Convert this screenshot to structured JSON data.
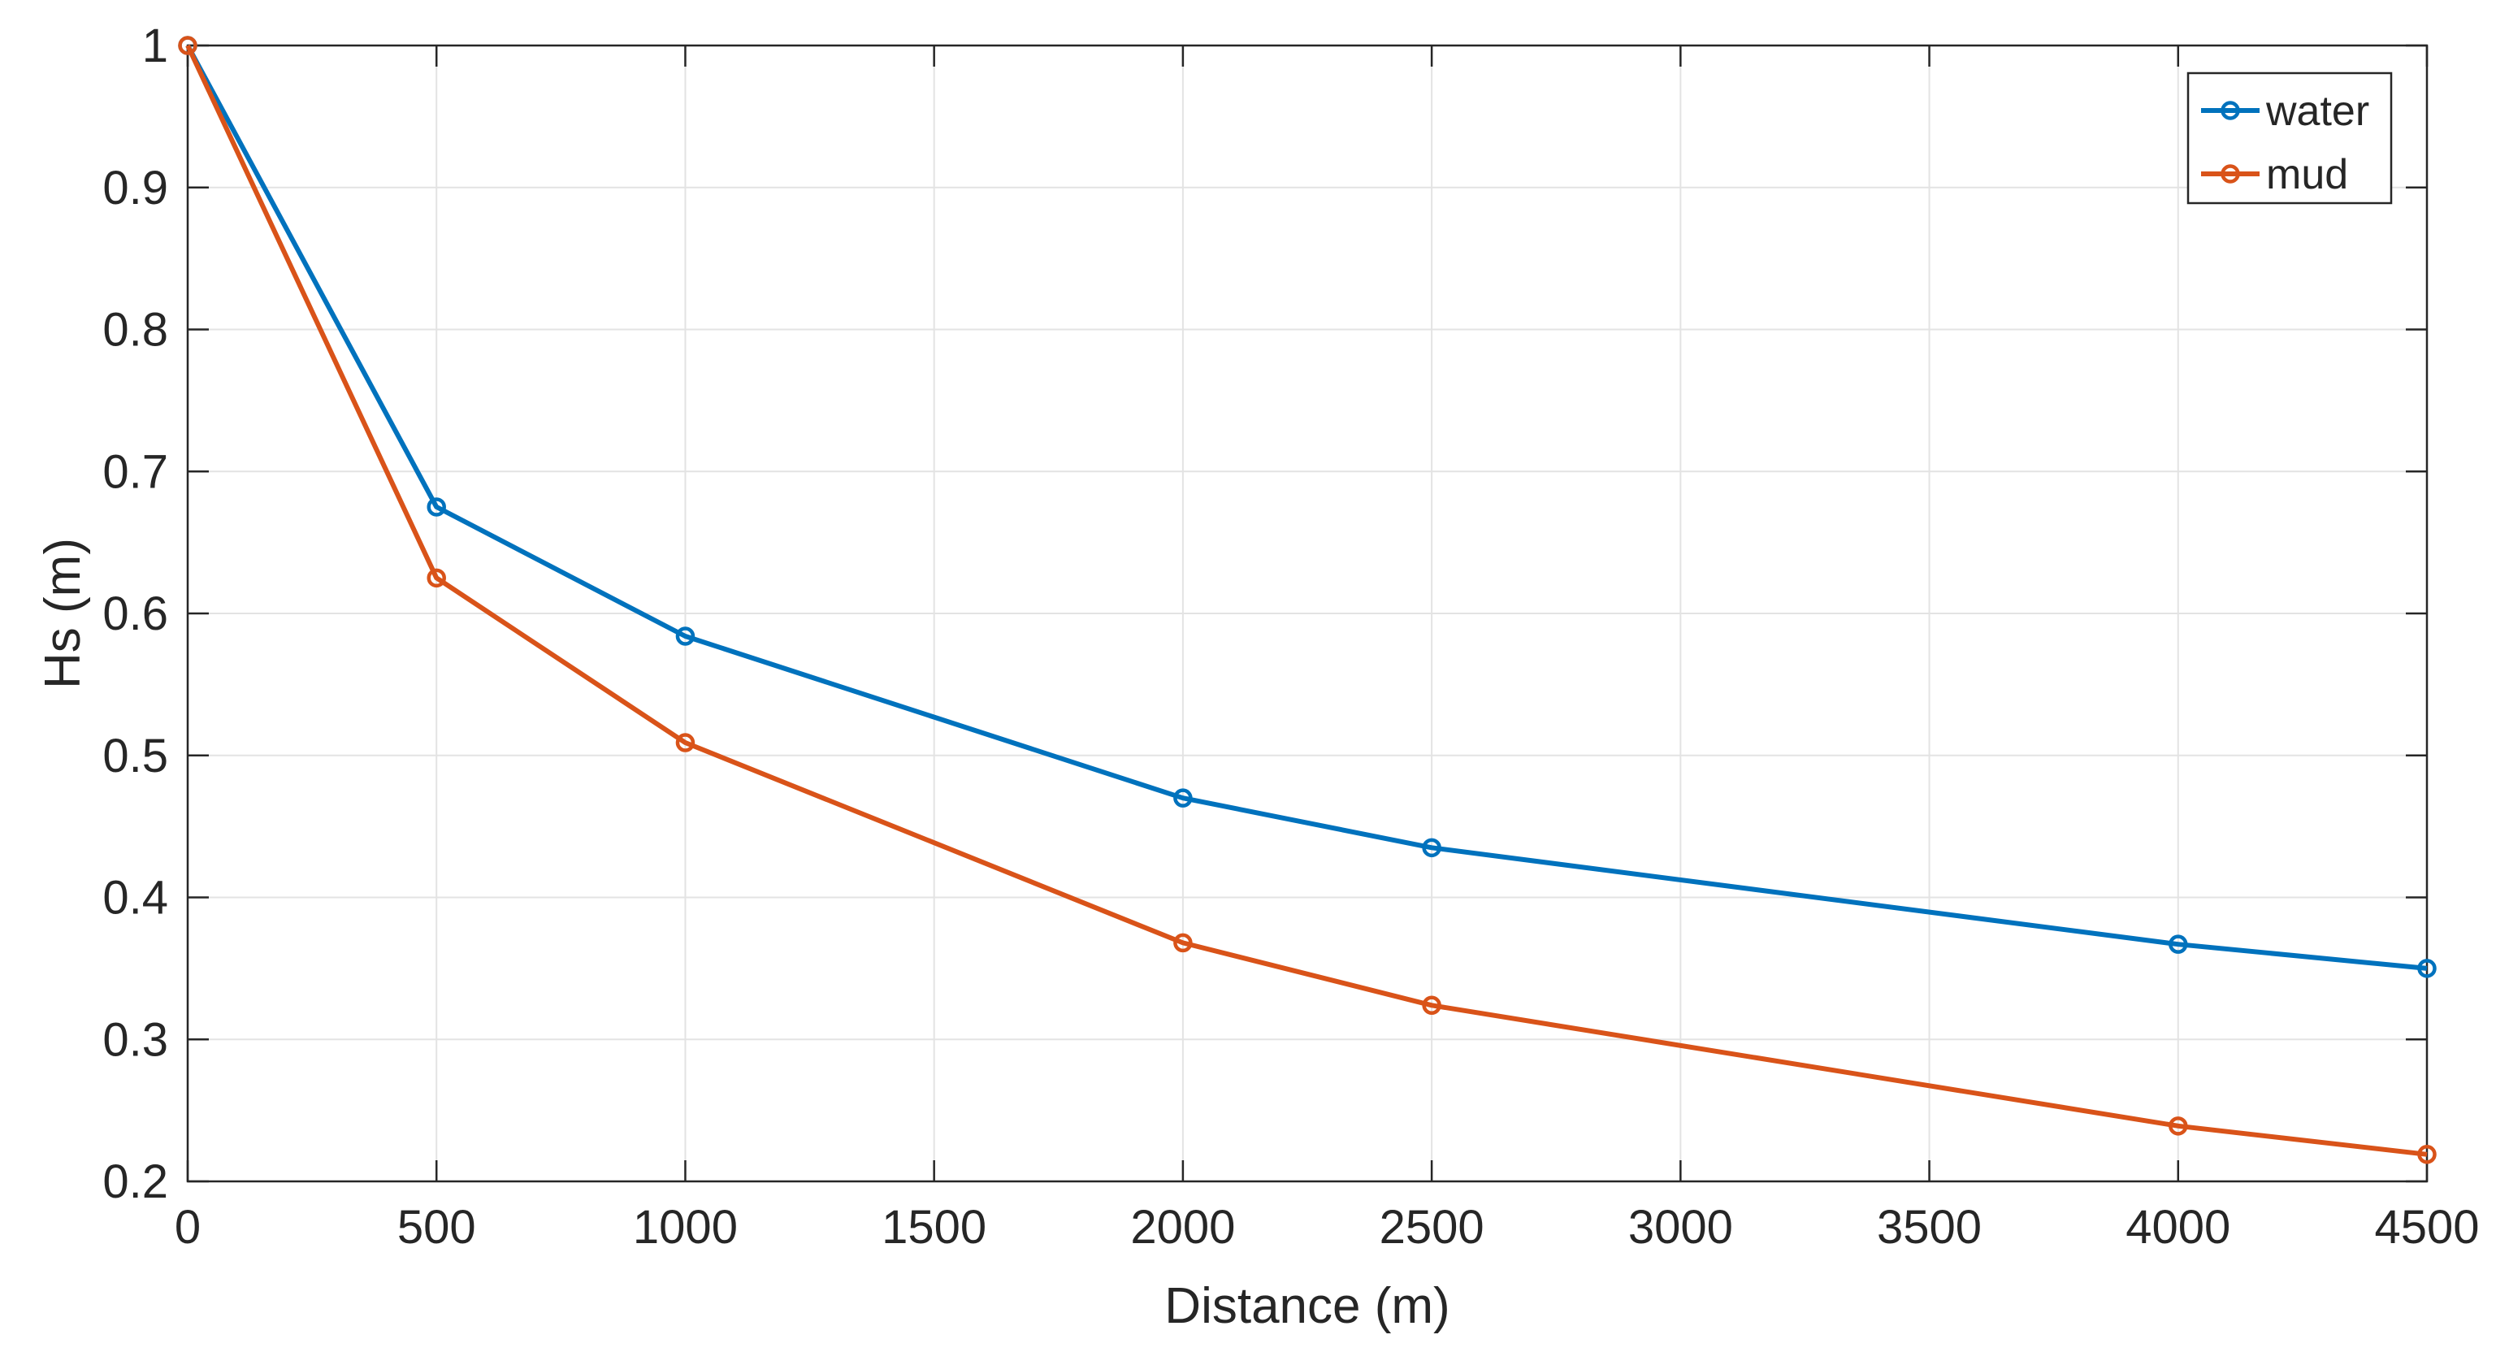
{
  "chart_data": {
    "type": "line",
    "title": "",
    "xlabel": "Distance (m)",
    "ylabel": "Hs (m)",
    "xlim": [
      0,
      4500
    ],
    "ylim": [
      0.2,
      1
    ],
    "xticks": [
      0,
      500,
      1000,
      1500,
      2000,
      2500,
      3000,
      3500,
      4000,
      4500
    ],
    "xtick_labels": [
      "0",
      "500",
      "1000",
      "1500",
      "2000",
      "2500",
      "3000",
      "3500",
      "4000",
      "4500"
    ],
    "yticks": [
      0.2,
      0.3,
      0.4,
      0.5,
      0.6,
      0.7,
      0.8,
      0.9,
      1
    ],
    "ytick_labels": [
      "0.2",
      "0.3",
      "0.4",
      "0.5",
      "0.6",
      "0.7",
      "0.8",
      "0.9",
      "1"
    ],
    "grid": true,
    "legend_position": "top-right",
    "x": [
      0,
      500,
      1000,
      2000,
      2500,
      4000,
      4500
    ],
    "series": [
      {
        "name": "water",
        "color": "#0072BD",
        "values": [
          1.0,
          0.675,
          0.584,
          0.47,
          0.435,
          0.367,
          0.35
        ]
      },
      {
        "name": "mud",
        "color": "#D95319",
        "values": [
          1.0,
          0.625,
          0.509,
          0.368,
          0.324,
          0.239,
          0.219
        ]
      }
    ]
  }
}
